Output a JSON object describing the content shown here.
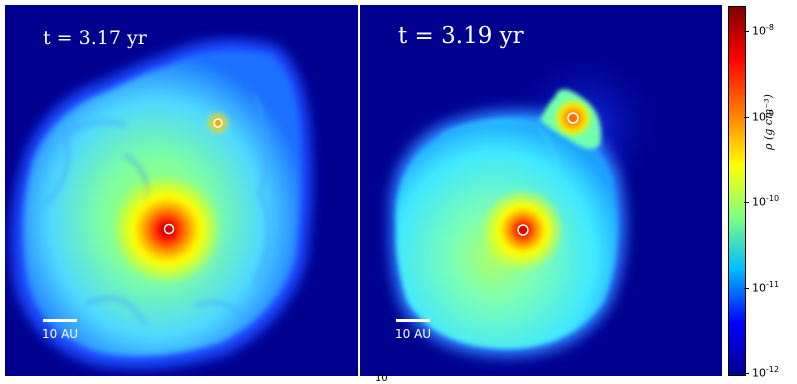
{
  "panels": [
    {
      "time_label": "t = 3.17 yr",
      "scale_bar_label": "10 AU"
    },
    {
      "time_label": "t = 3.19 yr",
      "scale_bar_label": "10 AU"
    }
  ],
  "colorbar": {
    "title": "ρ (g cm⁻³)",
    "ticks": [
      {
        "base": "10",
        "exp": "-8"
      },
      {
        "base": "10",
        "exp": "-9"
      },
      {
        "base": "10",
        "exp": "-10"
      },
      {
        "base": "10",
        "exp": "-11"
      },
      {
        "base": "10",
        "exp": "-12"
      }
    ]
  },
  "stray_label": "10",
  "colors": {
    "background_blue": "#00008f",
    "colormap": [
      "#00008f",
      "#0000ff",
      "#00bfff",
      "#7fff7f",
      "#ffff00",
      "#ff7f00",
      "#ff0000",
      "#800000"
    ]
  }
}
